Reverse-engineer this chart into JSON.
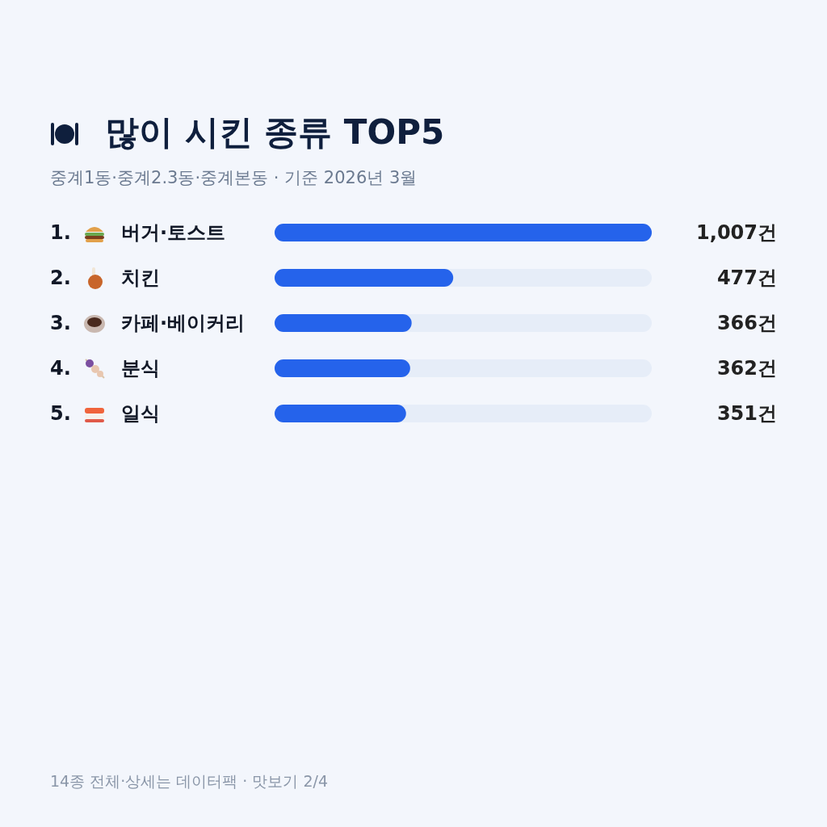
{
  "chart_data": {
    "type": "bar",
    "orientation": "horizontal",
    "title": "많이 시킨 종류 TOP5",
    "subtitle": "중계1동·중계2.3동·중계본동 · 기준 2026년 3월",
    "categories": [
      "1. 버거·토스트",
      "2. 치킨",
      "3. 카페·베이커리",
      "4. 분식",
      "5. 일식"
    ],
    "values": [
      1007,
      477,
      366,
      362,
      351
    ],
    "value_labels": [
      "1,007건",
      "477건",
      "366건",
      "362건",
      "351건"
    ],
    "color": "#2563eb",
    "annotations": [
      "14종 전체·상세는 데이터팩 · 맛보기 2/4"
    ]
  }
}
